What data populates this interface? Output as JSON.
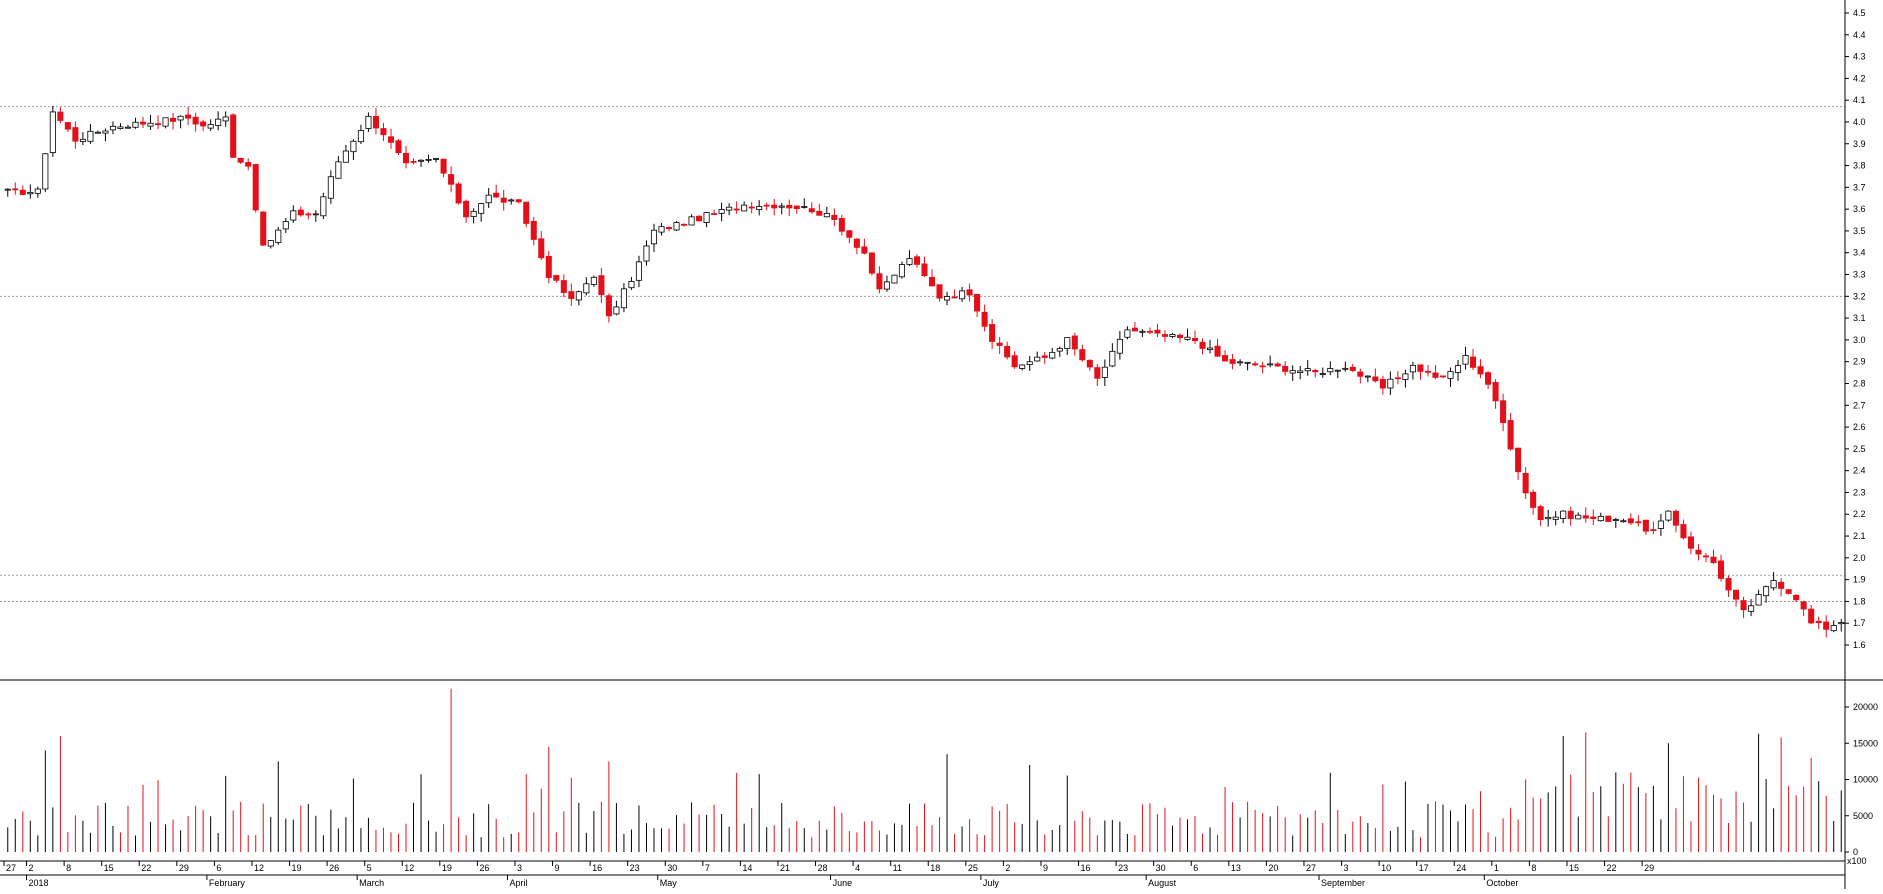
{
  "chart_data": [
    {
      "type": "candlestick",
      "title": "",
      "xlabel": "",
      "ylabel": "",
      "ylim": [
        1.5,
        4.55
      ],
      "y_ticks": [
        "1.6",
        "1.7",
        "1.8",
        "1.9",
        "2.0",
        "2.1",
        "2.2",
        "2.3",
        "2.4",
        "2.5",
        "2.6",
        "2.7",
        "2.8",
        "2.9",
        "3.0",
        "3.1",
        "3.2",
        "3.3",
        "3.4",
        "3.5",
        "3.6",
        "3.7",
        "3.8",
        "3.9",
        "4.0",
        "4.1",
        "4.2",
        "4.3",
        "4.4",
        "4.5"
      ],
      "reference_lines": [
        4.07,
        3.2,
        1.92,
        1.8
      ],
      "up_color": "#ffffff",
      "down_color": "#e3101a",
      "waypoints": [
        {
          "i": 0,
          "c": 3.68
        },
        {
          "i": 4,
          "c": 3.68
        },
        {
          "i": 6,
          "c": 4.05
        },
        {
          "i": 9,
          "c": 3.92
        },
        {
          "i": 14,
          "c": 3.98
        },
        {
          "i": 24,
          "c": 4.02
        },
        {
          "i": 26,
          "c": 3.98
        },
        {
          "i": 29,
          "c": 4.02
        },
        {
          "i": 30,
          "c": 3.85
        },
        {
          "i": 32,
          "c": 3.8
        },
        {
          "i": 34,
          "c": 3.42
        },
        {
          "i": 36,
          "c": 3.5
        },
        {
          "i": 38,
          "c": 3.58
        },
        {
          "i": 41,
          "c": 3.58
        },
        {
          "i": 44,
          "c": 3.82
        },
        {
          "i": 48,
          "c": 4.02
        },
        {
          "i": 50,
          "c": 3.95
        },
        {
          "i": 53,
          "c": 3.8
        },
        {
          "i": 57,
          "c": 3.83
        },
        {
          "i": 61,
          "c": 3.57
        },
        {
          "i": 64,
          "c": 3.66
        },
        {
          "i": 68,
          "c": 3.62
        },
        {
          "i": 72,
          "c": 3.3
        },
        {
          "i": 75,
          "c": 3.18
        },
        {
          "i": 78,
          "c": 3.3
        },
        {
          "i": 80,
          "c": 3.1
        },
        {
          "i": 83,
          "c": 3.28
        },
        {
          "i": 86,
          "c": 3.5
        },
        {
          "i": 92,
          "c": 3.56
        },
        {
          "i": 98,
          "c": 3.62
        },
        {
          "i": 103,
          "c": 3.62
        },
        {
          "i": 107,
          "c": 3.6
        },
        {
          "i": 110,
          "c": 3.55
        },
        {
          "i": 114,
          "c": 3.4
        },
        {
          "i": 116,
          "c": 3.22
        },
        {
          "i": 120,
          "c": 3.38
        },
        {
          "i": 124,
          "c": 3.2
        },
        {
          "i": 128,
          "c": 3.22
        },
        {
          "i": 131,
          "c": 3.0
        },
        {
          "i": 134,
          "c": 2.88
        },
        {
          "i": 138,
          "c": 2.92
        },
        {
          "i": 141,
          "c": 3.0
        },
        {
          "i": 145,
          "c": 2.82
        },
        {
          "i": 149,
          "c": 3.05
        },
        {
          "i": 153,
          "c": 3.02
        },
        {
          "i": 158,
          "c": 3.0
        },
        {
          "i": 162,
          "c": 2.9
        },
        {
          "i": 168,
          "c": 2.88
        },
        {
          "i": 174,
          "c": 2.85
        },
        {
          "i": 178,
          "c": 2.88
        },
        {
          "i": 183,
          "c": 2.78
        },
        {
          "i": 187,
          "c": 2.88
        },
        {
          "i": 191,
          "c": 2.82
        },
        {
          "i": 194,
          "c": 2.92
        },
        {
          "i": 196,
          "c": 2.85
        },
        {
          "i": 197,
          "c": 2.8
        },
        {
          "i": 199,
          "c": 2.62
        },
        {
          "i": 202,
          "c": 2.3
        },
        {
          "i": 204,
          "c": 2.18
        },
        {
          "i": 207,
          "c": 2.2
        },
        {
          "i": 211,
          "c": 2.18
        },
        {
          "i": 215,
          "c": 2.18
        },
        {
          "i": 219,
          "c": 2.12
        },
        {
          "i": 221,
          "c": 2.2
        },
        {
          "i": 224,
          "c": 2.05
        },
        {
          "i": 227,
          "c": 1.98
        },
        {
          "i": 229,
          "c": 1.85
        },
        {
          "i": 231,
          "c": 1.75
        },
        {
          "i": 233,
          "c": 1.82
        },
        {
          "i": 235,
          "c": 1.9
        },
        {
          "i": 238,
          "c": 1.82
        },
        {
          "i": 240,
          "c": 1.7
        },
        {
          "i": 242,
          "c": 1.68
        },
        {
          "i": 244,
          "c": 1.71
        }
      ],
      "n_bars": 245
    },
    {
      "type": "bar",
      "title": "",
      "xlabel": "",
      "ylabel": "",
      "ylim": [
        0,
        22500
      ],
      "y_ticks": [
        "0",
        "5000",
        "10000",
        "15000",
        "20000"
      ],
      "unit_label": "x100",
      "volume_keypoints": [
        {
          "i": 5,
          "v": 14000
        },
        {
          "i": 7,
          "v": 16000
        },
        {
          "i": 29,
          "v": 10500
        },
        {
          "i": 36,
          "v": 12500
        },
        {
          "i": 59,
          "v": 22500
        },
        {
          "i": 72,
          "v": 14500
        },
        {
          "i": 80,
          "v": 12500
        },
        {
          "i": 125,
          "v": 13500
        },
        {
          "i": 136,
          "v": 12000
        },
        {
          "i": 207,
          "v": 16000
        },
        {
          "i": 210,
          "v": 16500
        },
        {
          "i": 221,
          "v": 15000
        },
        {
          "i": 233,
          "v": 16300
        },
        {
          "i": 236,
          "v": 15800
        },
        {
          "i": 240,
          "v": 13000
        },
        {
          "i": 244,
          "v": 8500
        }
      ]
    }
  ],
  "x_axis": {
    "year_label": "2018",
    "day_ticks": [
      {
        "i": 0,
        "label": "27"
      },
      {
        "i": 3,
        "label": "2"
      },
      {
        "i": 8,
        "label": "8"
      },
      {
        "i": 13,
        "label": "15"
      },
      {
        "i": 18,
        "label": "22"
      },
      {
        "i": 23,
        "label": "29"
      },
      {
        "i": 28,
        "label": "6"
      },
      {
        "i": 33,
        "label": "12"
      },
      {
        "i": 38,
        "label": "19"
      },
      {
        "i": 43,
        "label": "26"
      },
      {
        "i": 48,
        "label": "5"
      },
      {
        "i": 53,
        "label": "12"
      },
      {
        "i": 58,
        "label": "19"
      },
      {
        "i": 63,
        "label": "26"
      },
      {
        "i": 68,
        "label": "3"
      },
      {
        "i": 73,
        "label": "9"
      },
      {
        "i": 78,
        "label": "16"
      },
      {
        "i": 83,
        "label": "23"
      },
      {
        "i": 88,
        "label": "30"
      },
      {
        "i": 93,
        "label": "7"
      },
      {
        "i": 98,
        "label": "14"
      },
      {
        "i": 103,
        "label": "21"
      },
      {
        "i": 108,
        "label": "28"
      },
      {
        "i": 113,
        "label": "4"
      },
      {
        "i": 118,
        "label": "11"
      },
      {
        "i": 123,
        "label": "18"
      },
      {
        "i": 128,
        "label": "25"
      },
      {
        "i": 133,
        "label": "2"
      },
      {
        "i": 138,
        "label": "9"
      },
      {
        "i": 143,
        "label": "16"
      },
      {
        "i": 148,
        "label": "23"
      },
      {
        "i": 153,
        "label": "30"
      },
      {
        "i": 158,
        "label": "6"
      },
      {
        "i": 163,
        "label": "13"
      },
      {
        "i": 168,
        "label": "20"
      },
      {
        "i": 173,
        "label": "27"
      },
      {
        "i": 178,
        "label": "3"
      },
      {
        "i": 183,
        "label": "10"
      },
      {
        "i": 188,
        "label": "17"
      },
      {
        "i": 193,
        "label": "24"
      },
      {
        "i": 198,
        "label": "1"
      },
      {
        "i": 203,
        "label": "8"
      },
      {
        "i": 208,
        "label": "15"
      },
      {
        "i": 213,
        "label": "22"
      },
      {
        "i": 218,
        "label": "29"
      }
    ],
    "months": [
      {
        "i": 3,
        "label": "2018"
      },
      {
        "i": 27,
        "label": "February"
      },
      {
        "i": 47,
        "label": "March"
      },
      {
        "i": 67,
        "label": "April"
      },
      {
        "i": 87,
        "label": "May"
      },
      {
        "i": 110,
        "label": "June"
      },
      {
        "i": 130,
        "label": "July"
      },
      {
        "i": 152,
        "label": "August"
      },
      {
        "i": 175,
        "label": "September"
      },
      {
        "i": 197,
        "label": "October"
      }
    ]
  }
}
